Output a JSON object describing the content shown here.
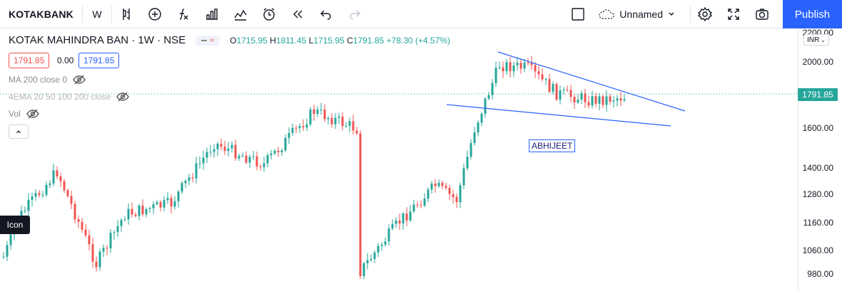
{
  "toolbar": {
    "symbol": "KOTAKBANK",
    "interval": "W",
    "layout_name": "Unnamed",
    "publish_label": "Publish",
    "icons": [
      "bar-style-icon",
      "add-indicator-icon",
      "fx-icon",
      "compare-icon",
      "indicators-icon",
      "alert-icon",
      "replay-icon",
      "undo-icon",
      "redo-icon",
      "fullscreen-box-icon",
      "cloud-icon",
      "chevron-down-icon",
      "settings-icon",
      "fullscreen-icon",
      "camera-icon"
    ]
  },
  "legend": {
    "title": "KOTAK MAHINDRA BAN · 1W · NSE",
    "ohlc": {
      "o_label": "O",
      "o": "1715.95",
      "h_label": "H",
      "h": "1811.45",
      "l_label": "L",
      "l": "1715.95",
      "c_label": "C",
      "c": "1791.85",
      "change": "+78.30 (+4.57%)"
    },
    "bid": "1791.85",
    "spread": "0.00",
    "ask": "1791.85"
  },
  "indicators": [
    {
      "label": "MA 200 close 0"
    },
    {
      "label": "4EMA 20 50 100 200 close"
    },
    {
      "label": "Vol"
    }
  ],
  "tooltip": "Icon",
  "annotation": "ABHIJEET",
  "price_axis": {
    "currency": "INR",
    "labels": [
      "2200.00",
      "2000.00",
      "1600.00",
      "1400.00",
      "1280.00",
      "1160.00",
      "1060.00",
      "980.00"
    ],
    "last_price": "1791.85"
  },
  "colors": {
    "up": "#26a69a",
    "down": "#ef5350",
    "trendline": "#2962ff",
    "accent": "#2962ff"
  }
}
